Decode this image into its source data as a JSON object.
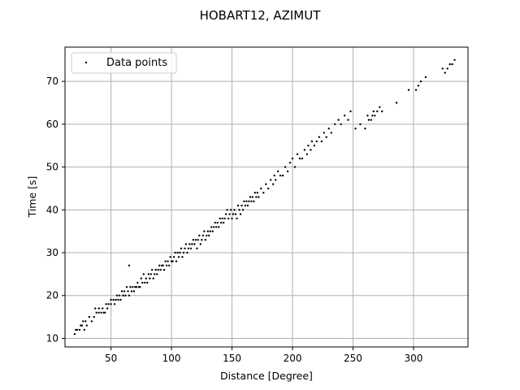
{
  "chart_data": {
    "type": "scatter",
    "title": "HOBART12, AZIMUT",
    "xlabel": "Distance [Degree]",
    "ylabel": "Time [s]",
    "xlim": [
      12,
      345
    ],
    "ylim": [
      8,
      78
    ],
    "xticks": [
      50,
      100,
      150,
      200,
      250,
      300
    ],
    "yticks": [
      10,
      20,
      30,
      40,
      50,
      60,
      70
    ],
    "grid": true,
    "legend": {
      "position": "top-left",
      "entries": [
        "Data points"
      ]
    },
    "marker_color": "#000000",
    "grid_color": "#b0b0b0",
    "series": [
      {
        "name": "Data points",
        "points": [
          [
            20,
            11
          ],
          [
            21,
            12
          ],
          [
            22,
            12
          ],
          [
            24,
            12
          ],
          [
            25,
            13
          ],
          [
            26,
            13
          ],
          [
            27,
            14
          ],
          [
            28,
            12
          ],
          [
            29,
            14
          ],
          [
            30,
            13
          ],
          [
            32,
            15
          ],
          [
            34,
            14
          ],
          [
            36,
            15
          ],
          [
            37,
            17
          ],
          [
            38,
            16
          ],
          [
            40,
            16
          ],
          [
            40,
            17
          ],
          [
            42,
            16
          ],
          [
            43,
            17
          ],
          [
            44,
            16
          ],
          [
            45,
            16
          ],
          [
            46,
            18
          ],
          [
            47,
            17
          ],
          [
            48,
            18
          ],
          [
            50,
            19
          ],
          [
            50,
            18
          ],
          [
            52,
            19
          ],
          [
            53,
            18
          ],
          [
            54,
            19
          ],
          [
            55,
            20
          ],
          [
            56,
            19
          ],
          [
            57,
            20
          ],
          [
            58,
            19
          ],
          [
            59,
            21
          ],
          [
            60,
            20
          ],
          [
            60,
            20
          ],
          [
            61,
            21
          ],
          [
            62,
            20
          ],
          [
            63,
            22
          ],
          [
            64,
            21
          ],
          [
            65,
            20
          ],
          [
            65,
            27
          ],
          [
            66,
            22
          ],
          [
            67,
            21
          ],
          [
            68,
            22
          ],
          [
            69,
            21
          ],
          [
            70,
            22
          ],
          [
            71,
            22
          ],
          [
            72,
            23
          ],
          [
            73,
            22
          ],
          [
            74,
            22
          ],
          [
            75,
            24
          ],
          [
            76,
            23
          ],
          [
            77,
            25
          ],
          [
            78,
            23
          ],
          [
            79,
            24
          ],
          [
            80,
            23
          ],
          [
            81,
            25
          ],
          [
            82,
            24
          ],
          [
            83,
            25
          ],
          [
            84,
            26
          ],
          [
            85,
            24
          ],
          [
            86,
            25
          ],
          [
            87,
            26
          ],
          [
            88,
            25
          ],
          [
            89,
            26
          ],
          [
            90,
            27
          ],
          [
            91,
            26
          ],
          [
            92,
            27
          ],
          [
            93,
            27
          ],
          [
            94,
            26
          ],
          [
            95,
            28
          ],
          [
            96,
            27
          ],
          [
            97,
            28
          ],
          [
            98,
            27
          ],
          [
            99,
            29
          ],
          [
            100,
            28
          ],
          [
            101,
            28
          ],
          [
            102,
            29
          ],
          [
            103,
            30
          ],
          [
            104,
            28
          ],
          [
            105,
            30
          ],
          [
            106,
            29
          ],
          [
            107,
            30
          ],
          [
            108,
            31
          ],
          [
            109,
            29
          ],
          [
            110,
            30
          ],
          [
            111,
            31
          ],
          [
            112,
            32
          ],
          [
            113,
            30
          ],
          [
            114,
            31
          ],
          [
            115,
            32
          ],
          [
            116,
            31
          ],
          [
            117,
            32
          ],
          [
            118,
            33
          ],
          [
            119,
            32
          ],
          [
            120,
            33
          ],
          [
            121,
            31
          ],
          [
            122,
            33
          ],
          [
            123,
            34
          ],
          [
            124,
            32
          ],
          [
            125,
            33
          ],
          [
            126,
            34
          ],
          [
            127,
            35
          ],
          [
            128,
            33
          ],
          [
            129,
            34
          ],
          [
            130,
            35
          ],
          [
            131,
            34
          ],
          [
            132,
            35
          ],
          [
            133,
            36
          ],
          [
            134,
            35
          ],
          [
            135,
            36
          ],
          [
            136,
            37
          ],
          [
            137,
            36
          ],
          [
            138,
            37
          ],
          [
            139,
            36
          ],
          [
            140,
            38
          ],
          [
            141,
            37
          ],
          [
            142,
            38
          ],
          [
            143,
            37
          ],
          [
            144,
            38
          ],
          [
            145,
            39
          ],
          [
            146,
            40
          ],
          [
            147,
            38
          ],
          [
            148,
            39
          ],
          [
            149,
            40
          ],
          [
            150,
            38
          ],
          [
            151,
            39
          ],
          [
            152,
            40
          ],
          [
            153,
            39
          ],
          [
            154,
            38
          ],
          [
            155,
            41
          ],
          [
            156,
            40
          ],
          [
            157,
            39
          ],
          [
            158,
            41
          ],
          [
            159,
            40
          ],
          [
            160,
            42
          ],
          [
            161,
            41
          ],
          [
            162,
            42
          ],
          [
            163,
            41
          ],
          [
            164,
            42
          ],
          [
            165,
            43
          ],
          [
            166,
            42
          ],
          [
            167,
            43
          ],
          [
            168,
            42
          ],
          [
            169,
            44
          ],
          [
            170,
            43
          ],
          [
            171,
            44
          ],
          [
            172,
            43
          ],
          [
            174,
            45
          ],
          [
            176,
            44
          ],
          [
            178,
            46
          ],
          [
            180,
            45
          ],
          [
            182,
            47
          ],
          [
            184,
            46
          ],
          [
            185,
            48
          ],
          [
            186,
            47
          ],
          [
            188,
            49
          ],
          [
            190,
            48
          ],
          [
            192,
            48
          ],
          [
            194,
            50
          ],
          [
            196,
            49
          ],
          [
            198,
            51
          ],
          [
            200,
            52
          ],
          [
            202,
            50
          ],
          [
            204,
            53
          ],
          [
            206,
            52
          ],
          [
            208,
            52
          ],
          [
            210,
            54
          ],
          [
            212,
            53
          ],
          [
            213,
            55
          ],
          [
            215,
            54
          ],
          [
            216,
            56
          ],
          [
            218,
            55
          ],
          [
            220,
            56
          ],
          [
            222,
            57
          ],
          [
            224,
            56
          ],
          [
            226,
            58
          ],
          [
            228,
            57
          ],
          [
            230,
            59
          ],
          [
            232,
            58
          ],
          [
            235,
            60
          ],
          [
            238,
            61
          ],
          [
            240,
            60
          ],
          [
            243,
            62
          ],
          [
            246,
            61
          ],
          [
            248,
            63
          ],
          [
            252,
            59
          ],
          [
            256,
            60
          ],
          [
            260,
            59
          ],
          [
            262,
            62
          ],
          [
            263,
            61
          ],
          [
            265,
            61
          ],
          [
            266,
            62
          ],
          [
            267,
            63
          ],
          [
            268,
            62
          ],
          [
            270,
            63
          ],
          [
            272,
            64
          ],
          [
            274,
            63
          ],
          [
            286,
            65
          ],
          [
            296,
            68
          ],
          [
            302,
            68
          ],
          [
            304,
            69
          ],
          [
            306,
            70
          ],
          [
            310,
            71
          ],
          [
            324,
            73
          ],
          [
            326,
            72
          ],
          [
            328,
            73
          ],
          [
            330,
            74
          ],
          [
            332,
            74
          ],
          [
            334,
            75
          ]
        ]
      }
    ]
  }
}
